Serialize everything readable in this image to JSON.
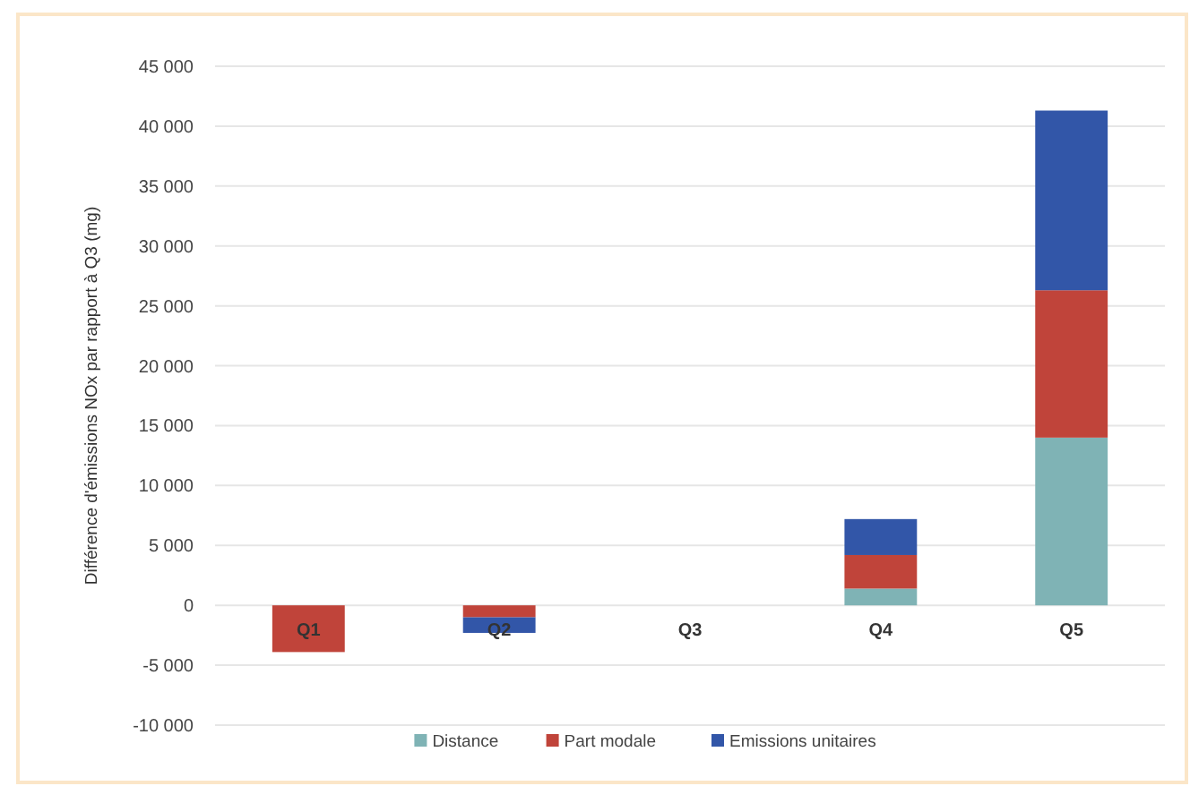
{
  "chart_data": {
    "type": "bar",
    "stacked": true,
    "ylabel": "Différence d'émissions NOx par rapport à Q3 (mg)",
    "categories": [
      "Q1",
      "Q2",
      "Q3",
      "Q4",
      "Q5"
    ],
    "series": [
      {
        "name": "Distance",
        "color": "#7fb3b5",
        "values": [
          0,
          0,
          0,
          1400,
          14000
        ]
      },
      {
        "name": "Part modale",
        "color": "#c0443a",
        "values": [
          -3900,
          -1000,
          0,
          2800,
          12300
        ]
      },
      {
        "name": "Emissions unitaires",
        "color": "#3256a8",
        "values": [
          0,
          -1300,
          0,
          3000,
          15000
        ]
      }
    ],
    "ylim": [
      -10000,
      45000
    ],
    "yticks": [
      {
        "value": -10000,
        "label": "-10 000"
      },
      {
        "value": -5000,
        "label": "-5 000"
      },
      0,
      {
        "value": 5000,
        "label": "5 000"
      },
      {
        "value": 10000,
        "label": "10 000"
      },
      {
        "value": 15000,
        "label": "15 000"
      },
      {
        "value": 20000,
        "label": "20 000"
      },
      {
        "value": 25000,
        "label": "25 000"
      },
      {
        "value": 30000,
        "label": "30 000"
      },
      {
        "value": 35000,
        "label": "35 000"
      },
      {
        "value": 40000,
        "label": "40 000"
      },
      {
        "value": 45000,
        "label": "45 000"
      }
    ],
    "grid": "y",
    "legend": "bottom"
  }
}
